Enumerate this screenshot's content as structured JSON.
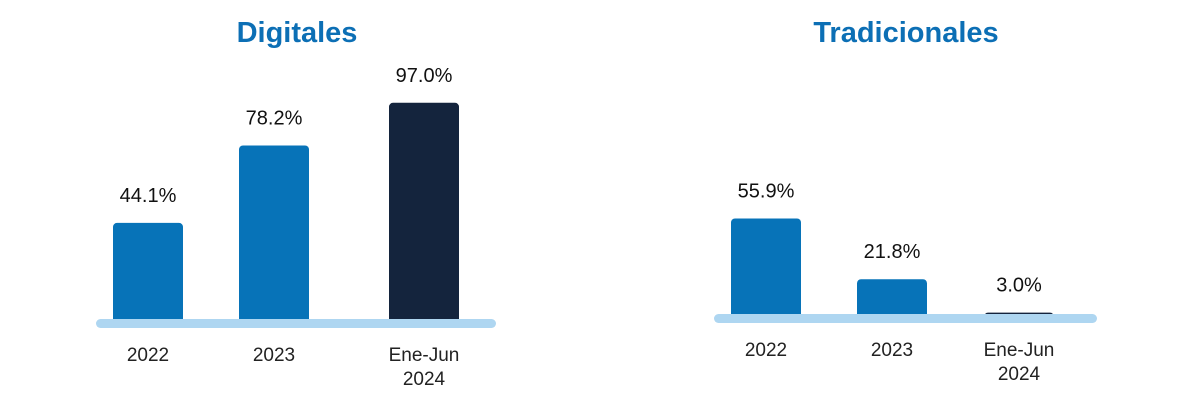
{
  "colors": {
    "title": "#0c6fb5",
    "bar_primary": "#0773b8",
    "bar_highlight": "#14243d",
    "baseline": "#aed6f1",
    "text": "#111111"
  },
  "chart_data": [
    {
      "type": "bar",
      "title": "Digitales",
      "categories": [
        [
          "2022"
        ],
        [
          "2023"
        ],
        [
          "Ene-Jun",
          "2024"
        ]
      ],
      "values": [
        44.1,
        78.2,
        97.0
      ],
      "value_labels": [
        "44.1%",
        "78.2%",
        "97.0%"
      ],
      "highlight_index": 2,
      "ylim": [
        0,
        100
      ]
    },
    {
      "type": "bar",
      "title": "Tradicionales",
      "categories": [
        [
          "2022"
        ],
        [
          "2023"
        ],
        [
          "Ene-Jun",
          "2024"
        ]
      ],
      "values": [
        55.9,
        21.8,
        3.0
      ],
      "value_labels": [
        "55.9%",
        "21.8%",
        "3.0%"
      ],
      "highlight_index": 2,
      "ylim": [
        0,
        100
      ]
    }
  ]
}
